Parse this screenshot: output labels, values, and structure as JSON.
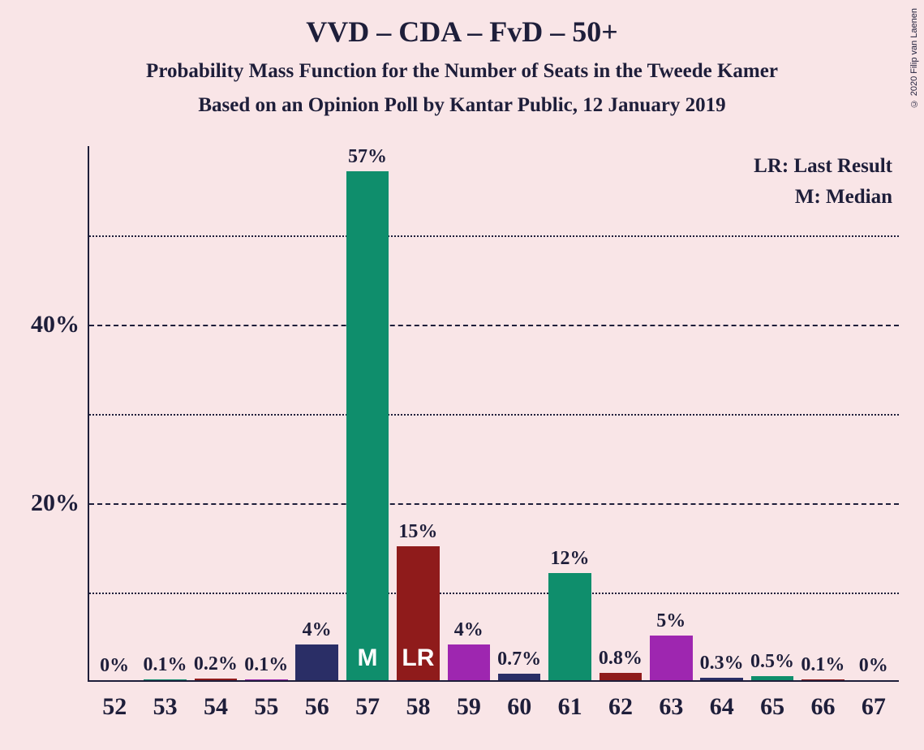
{
  "copyright": "© 2020 Filip van Laenen",
  "title": "VVD – CDA – FvD – 50+",
  "subtitle1": "Probability Mass Function for the Number of Seats in the Tweede Kamer",
  "subtitle2": "Based on an Opinion Poll by Kantar Public, 12 January 2019",
  "legend": {
    "lr": "LR: Last Result",
    "m": "M: Median"
  },
  "chart": {
    "type": "bar",
    "background_color": "#f9e5e7",
    "text_color": "#1e1e3a",
    "bar_width_ratio": 0.84,
    "title_fontsize": 36,
    "subtitle_fontsize": 25,
    "axis_label_fontsize": 30,
    "value_label_fontsize": 24,
    "legend_fontsize": 25,
    "y_axis": {
      "min": 0,
      "max": 60,
      "major_ticks": [
        20,
        40
      ],
      "minor_ticks": [
        10,
        30,
        50
      ],
      "tick_labels": {
        "20": "20%",
        "40": "40%"
      }
    },
    "colors_cycle": [
      "#2a2e66",
      "#0f8e6c",
      "#8f1b1b",
      "#9e26b0"
    ],
    "categories": [
      "52",
      "53",
      "54",
      "55",
      "56",
      "57",
      "58",
      "59",
      "60",
      "61",
      "62",
      "63",
      "64",
      "65",
      "66",
      "67"
    ],
    "values": [
      0,
      0.1,
      0.2,
      0.1,
      4,
      57,
      15,
      4,
      0.7,
      12,
      0.8,
      5,
      0.3,
      0.5,
      0.1,
      0
    ],
    "value_labels": [
      "0%",
      "0.1%",
      "0.2%",
      "0.1%",
      "4%",
      "57%",
      "15%",
      "4%",
      "0.7%",
      "12%",
      "0.8%",
      "5%",
      "0.3%",
      "0.5%",
      "0.1%",
      "0%"
    ],
    "markers": {
      "57": "M",
      "58": "LR"
    }
  }
}
